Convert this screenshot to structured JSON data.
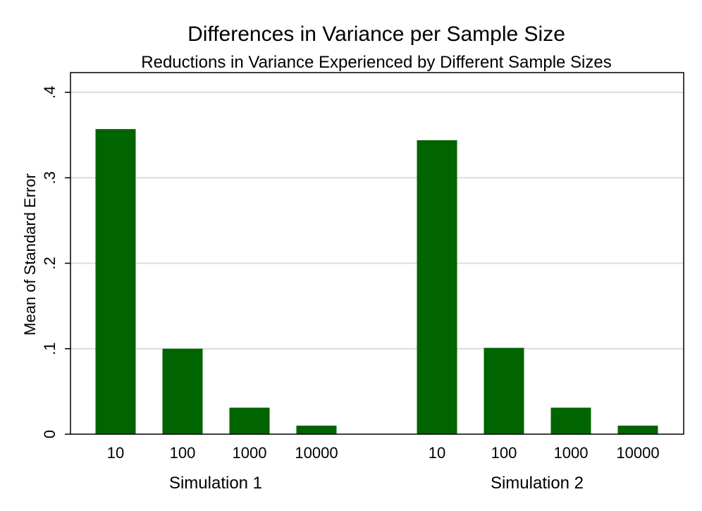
{
  "chart_data": {
    "type": "bar",
    "title": "Differences in Variance per Sample Size",
    "subtitle": "Reductions in Variance Experienced by Different Sample Sizes",
    "xlabel": "",
    "ylabel": "Mean of Standard Error",
    "ylim": [
      0,
      0.4
    ],
    "yticks": [
      {
        "value": 0,
        "label": "0"
      },
      {
        "value": 0.1,
        "label": ".1"
      },
      {
        "value": 0.2,
        "label": ".2"
      },
      {
        "value": 0.3,
        "label": ".3"
      },
      {
        "value": 0.4,
        "label": ".4"
      }
    ],
    "grid": true,
    "bar_color": "#006400",
    "groups": [
      {
        "name": "Simulation 1",
        "categories": [
          "10",
          "100",
          "1000",
          "10000"
        ],
        "values": [
          0.357,
          0.1,
          0.031,
          0.01
        ]
      },
      {
        "name": "Simulation 2",
        "categories": [
          "10",
          "100",
          "1000",
          "10000"
        ],
        "values": [
          0.344,
          0.101,
          0.031,
          0.01
        ]
      }
    ]
  }
}
